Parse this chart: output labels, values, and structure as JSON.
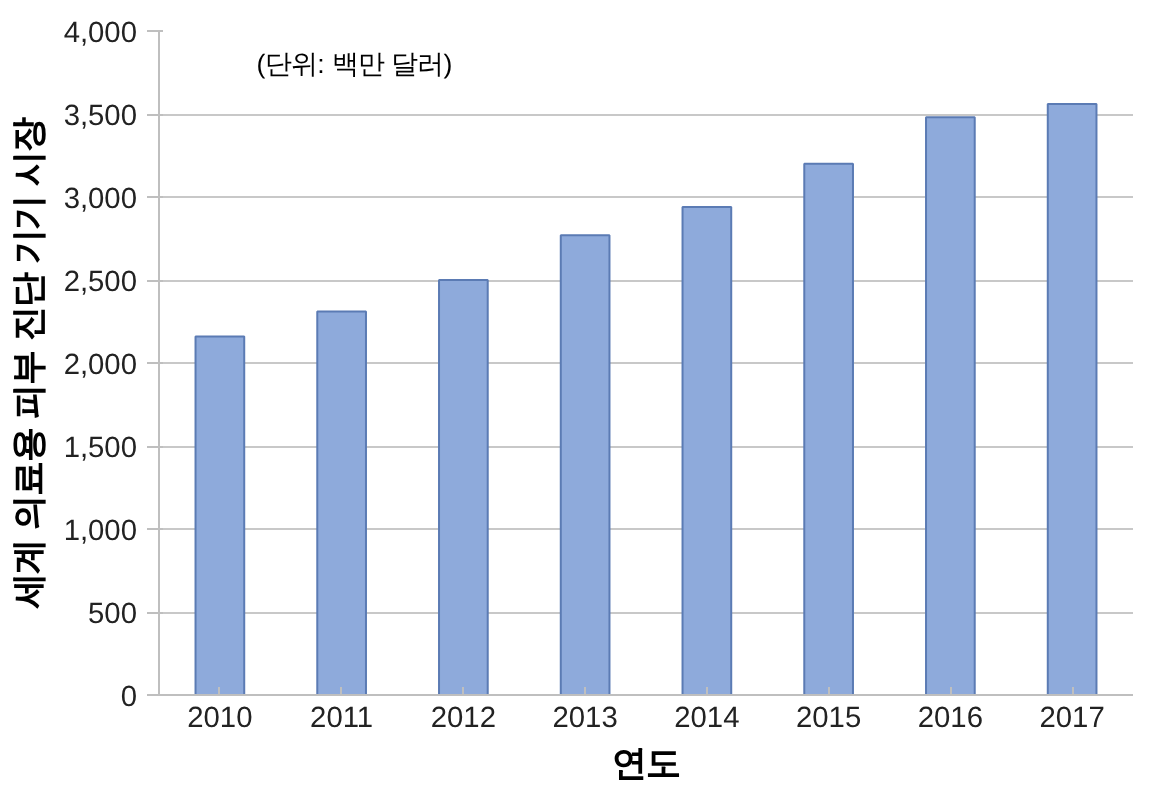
{
  "chart_data": {
    "type": "bar",
    "xlabel": "연도",
    "ylabel": "세계 의료용 피부 진단 기기 시장",
    "annotations": [
      "(단위: 백만 달러)"
    ],
    "categories": [
      "2010",
      "2011",
      "2012",
      "2013",
      "2014",
      "2015",
      "2016",
      "2017"
    ],
    "values": [
      2160,
      2310,
      2500,
      2770,
      2940,
      3200,
      3480,
      3560
    ],
    "color": "#8eaadb",
    "ylim": [
      0,
      4000
    ],
    "yticks": [
      0,
      {
        "value": 500,
        "label": "500"
      },
      {
        "value": 1000,
        "label": "1,000"
      },
      {
        "value": 1500,
        "label": "1,500"
      },
      {
        "value": 2000,
        "label": "2,000"
      },
      {
        "value": 2500,
        "label": "2,500"
      },
      {
        "value": 3000,
        "label": "3,000"
      },
      {
        "value": 3500,
        "label": "3,500"
      },
      {
        "value": 4000,
        "label": "4,000"
      }
    ],
    "grid": "y"
  }
}
